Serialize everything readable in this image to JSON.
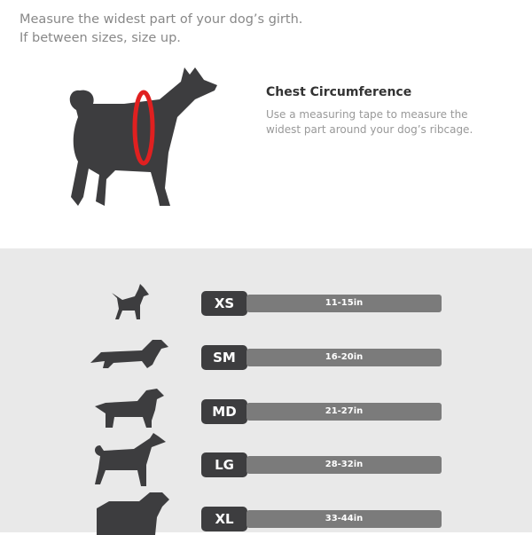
{
  "intro": {
    "line1": "Measure the widest part of your dog’s girth.",
    "line2": "If between sizes, size up."
  },
  "measure": {
    "title": "Chest Circumference",
    "description": "Use a measuring tape to measure the widest part around your dog’s ribcage."
  },
  "colors": {
    "silhouette": "#3d3d3f",
    "tape": "#e02020",
    "bar": "#7b7b7b",
    "pill": "#3d3d3f",
    "background": "#e9e9e9"
  },
  "sizes": [
    {
      "label": "XS",
      "range": "11-15in",
      "icon": "small-dog-icon"
    },
    {
      "label": "SM",
      "range": "16-20in",
      "icon": "dachshund-icon"
    },
    {
      "label": "MD",
      "range": "21-27in",
      "icon": "spaniel-icon"
    },
    {
      "label": "LG",
      "range": "28-32in",
      "icon": "husky-icon"
    },
    {
      "label": "XL",
      "range": "33-44in",
      "icon": "large-dog-icon"
    }
  ]
}
